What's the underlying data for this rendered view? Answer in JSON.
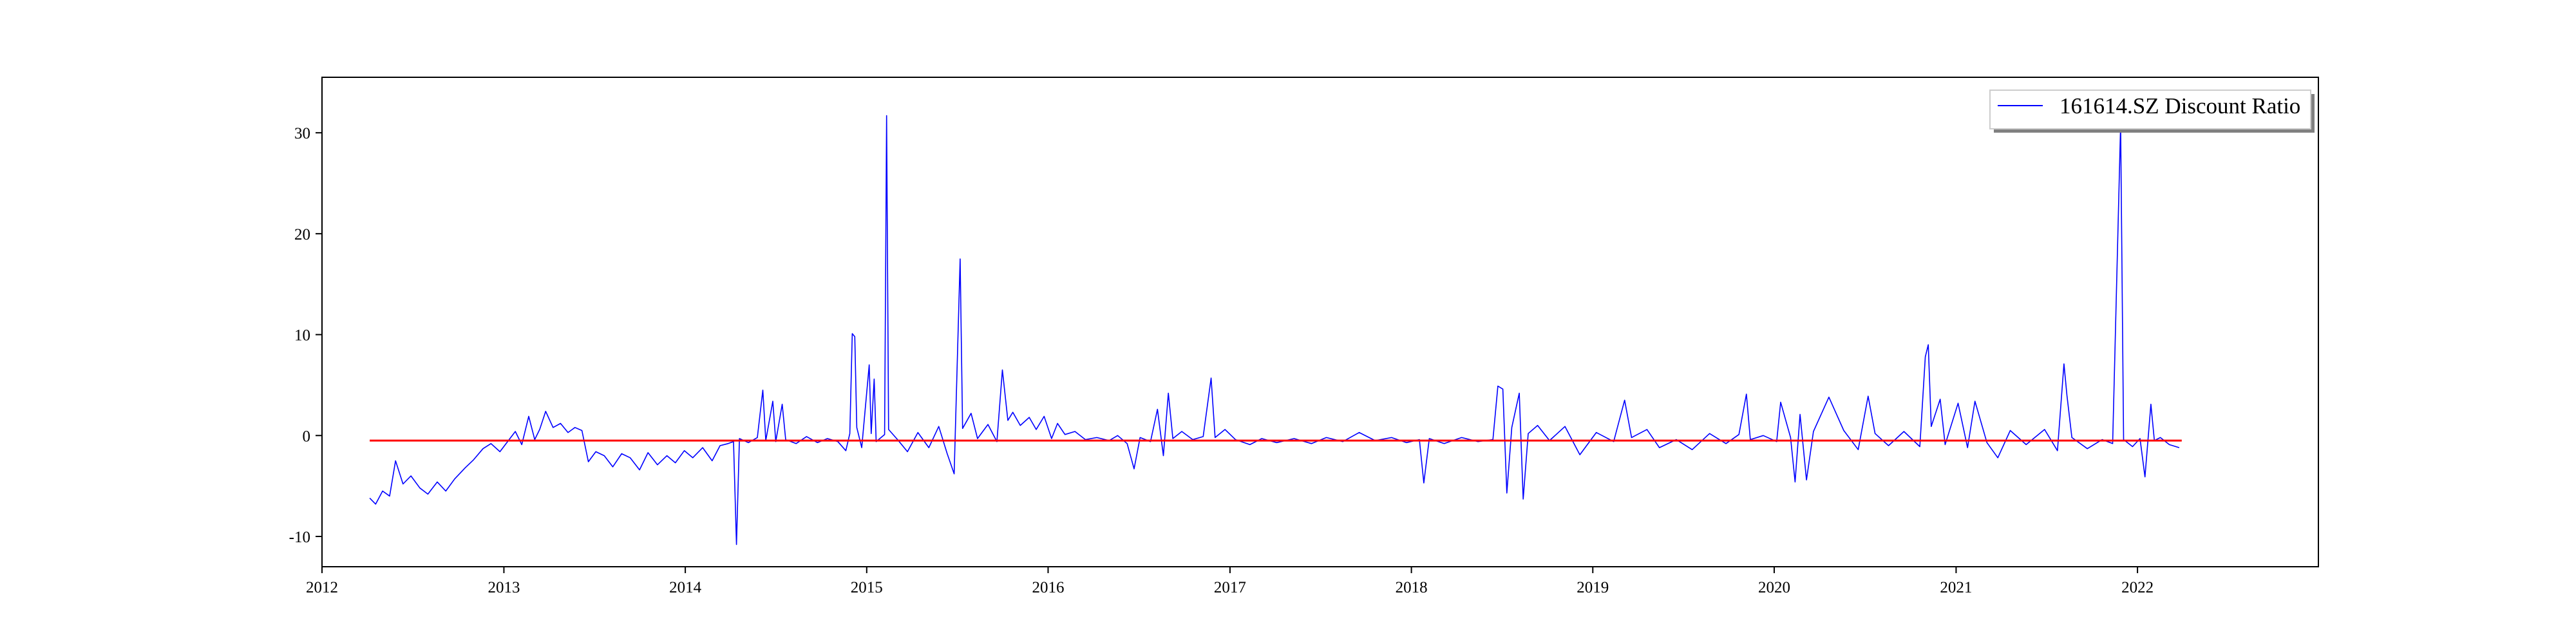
{
  "chart_data": {
    "type": "line",
    "title": "",
    "xlabel": "",
    "ylabel": "",
    "x_range": [
      "2012-01-01",
      "2022-12-31"
    ],
    "ylim": [
      -13,
      35.5
    ],
    "x_ticks": [
      "2012",
      "2013",
      "2014",
      "2015",
      "2016",
      "2017",
      "2018",
      "2019",
      "2020",
      "2021",
      "2022"
    ],
    "y_ticks": [
      -10,
      0,
      10,
      20,
      30
    ],
    "grid": false,
    "legend": {
      "placement": "top-right",
      "entries": [
        "161614.SZ Discount Ratio"
      ]
    },
    "series": [
      {
        "name": "161614.SZ Discount Ratio",
        "color": "#0000ff",
        "points": [
          [
            "2012-04-06",
            -6.2
          ],
          [
            "2012-04-18",
            -6.8
          ],
          [
            "2012-05-02",
            -5.5
          ],
          [
            "2012-05-16",
            -6.0
          ],
          [
            "2012-05-28",
            -2.5
          ],
          [
            "2012-06-12",
            -4.8
          ],
          [
            "2012-06-28",
            -4.0
          ],
          [
            "2012-07-16",
            -5.2
          ],
          [
            "2012-08-01",
            -5.8
          ],
          [
            "2012-08-20",
            -4.6
          ],
          [
            "2012-09-06",
            -5.5
          ],
          [
            "2012-09-24",
            -4.3
          ],
          [
            "2012-10-15",
            -3.2
          ],
          [
            "2012-11-01",
            -2.4
          ],
          [
            "2012-11-20",
            -1.3
          ],
          [
            "2012-12-06",
            -0.8
          ],
          [
            "2012-12-24",
            -1.6
          ],
          [
            "2013-01-10",
            -0.5
          ],
          [
            "2013-01-24",
            0.4
          ],
          [
            "2013-02-06",
            -0.9
          ],
          [
            "2013-02-20",
            1.9
          ],
          [
            "2013-03-04",
            -0.4
          ],
          [
            "2013-03-14",
            0.6
          ],
          [
            "2013-03-26",
            2.4
          ],
          [
            "2013-04-10",
            0.8
          ],
          [
            "2013-04-25",
            1.2
          ],
          [
            "2013-05-10",
            0.3
          ],
          [
            "2013-05-24",
            0.8
          ],
          [
            "2013-06-07",
            0.5
          ],
          [
            "2013-06-20",
            -2.6
          ],
          [
            "2013-07-05",
            -1.6
          ],
          [
            "2013-07-22",
            -2.0
          ],
          [
            "2013-08-08",
            -3.1
          ],
          [
            "2013-08-26",
            -1.8
          ],
          [
            "2013-09-12",
            -2.2
          ],
          [
            "2013-10-01",
            -3.4
          ],
          [
            "2013-10-18",
            -1.7
          ],
          [
            "2013-11-06",
            -2.9
          ],
          [
            "2013-11-25",
            -2.0
          ],
          [
            "2013-12-12",
            -2.7
          ],
          [
            "2013-12-30",
            -1.5
          ],
          [
            "2014-01-16",
            -2.2
          ],
          [
            "2014-02-05",
            -1.2
          ],
          [
            "2014-02-24",
            -2.5
          ],
          [
            "2014-03-12",
            -1.0
          ],
          [
            "2014-03-28",
            -0.8
          ],
          [
            "2014-04-08",
            -0.6
          ],
          [
            "2014-04-14",
            -10.8
          ],
          [
            "2014-04-20",
            -0.3
          ],
          [
            "2014-05-08",
            -0.7
          ],
          [
            "2014-05-26",
            -0.2
          ],
          [
            "2014-06-06",
            4.5
          ],
          [
            "2014-06-12",
            -0.5
          ],
          [
            "2014-06-26",
            3.4
          ],
          [
            "2014-07-02",
            -0.6
          ],
          [
            "2014-07-15",
            3.1
          ],
          [
            "2014-07-22",
            -0.4
          ],
          [
            "2014-08-12",
            -0.8
          ],
          [
            "2014-09-02",
            -0.1
          ],
          [
            "2014-09-24",
            -0.7
          ],
          [
            "2014-10-14",
            -0.3
          ],
          [
            "2014-11-04",
            -0.6
          ],
          [
            "2014-11-20",
            -1.5
          ],
          [
            "2014-11-28",
            0.2
          ],
          [
            "2014-12-03",
            10.1
          ],
          [
            "2014-12-08",
            9.8
          ],
          [
            "2014-12-12",
            0.8
          ],
          [
            "2014-12-22",
            -1.2
          ],
          [
            "2015-01-06",
            7.0
          ],
          [
            "2015-01-10",
            0.2
          ],
          [
            "2015-01-16",
            5.6
          ],
          [
            "2015-01-20",
            -0.6
          ],
          [
            "2015-02-06",
            0.1
          ],
          [
            "2015-02-10",
            31.7
          ],
          [
            "2015-02-14",
            0.6
          ],
          [
            "2015-03-04",
            -0.4
          ],
          [
            "2015-03-24",
            -1.6
          ],
          [
            "2015-04-14",
            0.3
          ],
          [
            "2015-05-06",
            -1.2
          ],
          [
            "2015-05-26",
            0.9
          ],
          [
            "2015-06-12",
            -1.8
          ],
          [
            "2015-06-26",
            -3.8
          ],
          [
            "2015-07-08",
            17.5
          ],
          [
            "2015-07-13",
            0.7
          ],
          [
            "2015-07-30",
            2.2
          ],
          [
            "2015-08-12",
            -0.3
          ],
          [
            "2015-09-02",
            1.1
          ],
          [
            "2015-09-20",
            -0.6
          ],
          [
            "2015-10-01",
            6.5
          ],
          [
            "2015-10-12",
            1.5
          ],
          [
            "2015-10-22",
            2.3
          ],
          [
            "2015-11-06",
            1.0
          ],
          [
            "2015-11-24",
            1.8
          ],
          [
            "2015-12-08",
            0.6
          ],
          [
            "2015-12-24",
            1.9
          ],
          [
            "2016-01-08",
            -0.3
          ],
          [
            "2016-01-20",
            1.2
          ],
          [
            "2016-02-04",
            0.1
          ],
          [
            "2016-02-24",
            0.4
          ],
          [
            "2016-03-16",
            -0.4
          ],
          [
            "2016-04-08",
            -0.2
          ],
          [
            "2016-05-03",
            -0.5
          ],
          [
            "2016-05-20",
            0.0
          ],
          [
            "2016-06-08",
            -0.8
          ],
          [
            "2016-06-22",
            -3.3
          ],
          [
            "2016-07-04",
            -0.2
          ],
          [
            "2016-07-25",
            -0.6
          ],
          [
            "2016-08-08",
            2.6
          ],
          [
            "2016-08-20",
            -2.0
          ],
          [
            "2016-08-30",
            4.2
          ],
          [
            "2016-09-08",
            -0.3
          ],
          [
            "2016-09-26",
            0.4
          ],
          [
            "2016-10-18",
            -0.4
          ],
          [
            "2016-11-08",
            -0.1
          ],
          [
            "2016-11-24",
            5.7
          ],
          [
            "2016-12-02",
            -0.2
          ],
          [
            "2016-12-22",
            0.6
          ],
          [
            "2017-01-12",
            -0.4
          ],
          [
            "2017-02-10",
            -0.9
          ],
          [
            "2017-03-06",
            -0.3
          ],
          [
            "2017-04-05",
            -0.7
          ],
          [
            "2017-05-10",
            -0.3
          ],
          [
            "2017-06-14",
            -0.8
          ],
          [
            "2017-07-14",
            -0.2
          ],
          [
            "2017-08-16",
            -0.6
          ],
          [
            "2017-09-18",
            0.3
          ],
          [
            "2017-10-20",
            -0.5
          ],
          [
            "2017-11-22",
            -0.2
          ],
          [
            "2017-12-22",
            -0.7
          ],
          [
            "2018-01-17",
            -0.4
          ],
          [
            "2018-01-26",
            -4.7
          ],
          [
            "2018-02-06",
            -0.3
          ],
          [
            "2018-03-08",
            -0.8
          ],
          [
            "2018-04-12",
            -0.2
          ],
          [
            "2018-05-15",
            -0.6
          ],
          [
            "2018-06-14",
            -0.4
          ],
          [
            "2018-06-24",
            4.9
          ],
          [
            "2018-07-04",
            4.6
          ],
          [
            "2018-07-12",
            -5.7
          ],
          [
            "2018-07-22",
            0.8
          ],
          [
            "2018-08-06",
            4.2
          ],
          [
            "2018-08-14",
            -6.3
          ],
          [
            "2018-08-24",
            0.2
          ],
          [
            "2018-09-12",
            1.0
          ],
          [
            "2018-10-06",
            -0.5
          ],
          [
            "2018-11-06",
            0.9
          ],
          [
            "2018-12-06",
            -1.9
          ],
          [
            "2019-01-08",
            0.3
          ],
          [
            "2019-02-12",
            -0.6
          ],
          [
            "2019-03-06",
            3.5
          ],
          [
            "2019-03-20",
            -0.2
          ],
          [
            "2019-04-20",
            0.6
          ],
          [
            "2019-05-15",
            -1.2
          ],
          [
            "2019-06-18",
            -0.4
          ],
          [
            "2019-07-20",
            -1.4
          ],
          [
            "2019-08-24",
            0.2
          ],
          [
            "2019-09-26",
            -0.8
          ],
          [
            "2019-10-22",
            0.1
          ],
          [
            "2019-11-06",
            4.1
          ],
          [
            "2019-11-14",
            -0.4
          ],
          [
            "2019-12-10",
            0.0
          ],
          [
            "2020-01-06",
            -0.6
          ],
          [
            "2020-01-14",
            3.3
          ],
          [
            "2020-02-03",
            -0.2
          ],
          [
            "2020-02-12",
            -4.6
          ],
          [
            "2020-02-22",
            2.1
          ],
          [
            "2020-03-06",
            -4.4
          ],
          [
            "2020-03-20",
            0.4
          ],
          [
            "2020-04-20",
            3.8
          ],
          [
            "2020-05-20",
            0.5
          ],
          [
            "2020-06-18",
            -1.4
          ],
          [
            "2020-07-08",
            3.9
          ],
          [
            "2020-07-22",
            0.2
          ],
          [
            "2020-08-18",
            -1.0
          ],
          [
            "2020-09-18",
            0.4
          ],
          [
            "2020-10-20",
            -1.1
          ],
          [
            "2020-10-31",
            7.8
          ],
          [
            "2020-11-06",
            9.0
          ],
          [
            "2020-11-12",
            0.9
          ],
          [
            "2020-11-30",
            3.6
          ],
          [
            "2020-12-10",
            -0.9
          ],
          [
            "2021-01-05",
            3.2
          ],
          [
            "2021-01-24",
            -1.2
          ],
          [
            "2021-02-08",
            3.4
          ],
          [
            "2021-03-04",
            -0.7
          ],
          [
            "2021-03-26",
            -2.2
          ],
          [
            "2021-04-20",
            0.5
          ],
          [
            "2021-05-22",
            -0.9
          ],
          [
            "2021-06-28",
            0.6
          ],
          [
            "2021-07-24",
            -1.5
          ],
          [
            "2021-08-06",
            7.1
          ],
          [
            "2021-08-12",
            4.0
          ],
          [
            "2021-08-22",
            -0.2
          ],
          [
            "2021-09-22",
            -1.3
          ],
          [
            "2021-10-22",
            -0.4
          ],
          [
            "2021-11-12",
            -0.8
          ],
          [
            "2021-11-28",
            30.9
          ],
          [
            "2021-12-04",
            -0.4
          ],
          [
            "2021-12-22",
            -1.1
          ],
          [
            "2022-01-06",
            -0.3
          ],
          [
            "2022-01-16",
            -4.1
          ],
          [
            "2022-01-28",
            3.1
          ],
          [
            "2022-02-04",
            -0.5
          ],
          [
            "2022-02-16",
            -0.2
          ],
          [
            "2022-03-06",
            -0.9
          ],
          [
            "2022-03-26",
            -1.2
          ]
        ]
      },
      {
        "name": "",
        "color": "#ff0000",
        "points": [
          [
            "2012-04-06",
            -0.5
          ],
          [
            "2022-03-31",
            -0.5
          ]
        ]
      }
    ]
  }
}
